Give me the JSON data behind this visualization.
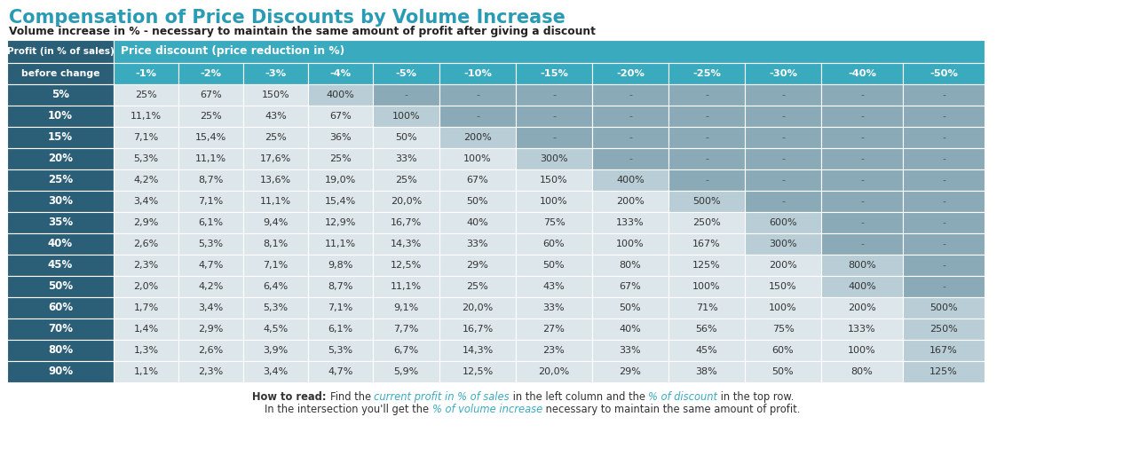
{
  "title": "Compensation of Price Discounts by Volume Increase",
  "subtitle": "Volume increase in % - necessary to maintain the same amount of profit after giving a discount",
  "col_headers": [
    "-1%",
    "-2%",
    "-3%",
    "-4%",
    "-5%",
    "-10%",
    "-15%",
    "-20%",
    "-25%",
    "-30%",
    "-40%",
    "-50%"
  ],
  "row_labels": [
    "5%",
    "10%",
    "15%",
    "20%",
    "25%",
    "30%",
    "35%",
    "40%",
    "45%",
    "50%",
    "60%",
    "70%",
    "80%",
    "90%"
  ],
  "table_data": [
    [
      "25%",
      "67%",
      "150%",
      "400%",
      "-",
      "-",
      "-",
      "-",
      "-",
      "-",
      "-",
      "-"
    ],
    [
      "11,1%",
      "25%",
      "43%",
      "67%",
      "100%",
      "-",
      "-",
      "-",
      "-",
      "-",
      "-",
      "-"
    ],
    [
      "7,1%",
      "15,4%",
      "25%",
      "36%",
      "50%",
      "200%",
      "-",
      "-",
      "-",
      "-",
      "-",
      "-"
    ],
    [
      "5,3%",
      "11,1%",
      "17,6%",
      "25%",
      "33%",
      "100%",
      "300%",
      "-",
      "-",
      "-",
      "-",
      "-"
    ],
    [
      "4,2%",
      "8,7%",
      "13,6%",
      "19,0%",
      "25%",
      "67%",
      "150%",
      "400%",
      "-",
      "-",
      "-",
      "-"
    ],
    [
      "3,4%",
      "7,1%",
      "11,1%",
      "15,4%",
      "20,0%",
      "50%",
      "100%",
      "200%",
      "500%",
      "-",
      "-",
      "-"
    ],
    [
      "2,9%",
      "6,1%",
      "9,4%",
      "12,9%",
      "16,7%",
      "40%",
      "75%",
      "133%",
      "250%",
      "600%",
      "-",
      "-"
    ],
    [
      "2,6%",
      "5,3%",
      "8,1%",
      "11,1%",
      "14,3%",
      "33%",
      "60%",
      "100%",
      "167%",
      "300%",
      "-",
      "-"
    ],
    [
      "2,3%",
      "4,7%",
      "7,1%",
      "9,8%",
      "12,5%",
      "29%",
      "50%",
      "80%",
      "125%",
      "200%",
      "800%",
      "-"
    ],
    [
      "2,0%",
      "4,2%",
      "6,4%",
      "8,7%",
      "11,1%",
      "25%",
      "43%",
      "67%",
      "100%",
      "150%",
      "400%",
      "-"
    ],
    [
      "1,7%",
      "3,4%",
      "5,3%",
      "7,1%",
      "9,1%",
      "20,0%",
      "33%",
      "50%",
      "71%",
      "100%",
      "200%",
      "500%"
    ],
    [
      "1,4%",
      "2,9%",
      "4,5%",
      "6,1%",
      "7,7%",
      "16,7%",
      "27%",
      "40%",
      "56%",
      "75%",
      "133%",
      "250%"
    ],
    [
      "1,3%",
      "2,6%",
      "3,9%",
      "5,3%",
      "6,7%",
      "14,3%",
      "23%",
      "33%",
      "45%",
      "60%",
      "100%",
      "167%"
    ],
    [
      "1,1%",
      "2,3%",
      "3,4%",
      "4,7%",
      "5,9%",
      "12,5%",
      "20,0%",
      "29%",
      "38%",
      "50%",
      "80%",
      "125%"
    ]
  ],
  "colors": {
    "title": "#2a9bb5",
    "subtitle_text": "#222222",
    "header_bg": "#3aaabf",
    "header_text": "#ffffff",
    "row_label_bg": "#2b5f78",
    "row_label_text": "#ffffff",
    "cell_white_bg": "#ffffff",
    "cell_light_bg": "#dde6ea",
    "cell_mid_bg": "#b8cdd5",
    "cell_dark_bg": "#8aaab8",
    "cell_text": "#333333",
    "note_normal": "#333333",
    "note_teal": "#3aaabf"
  },
  "last_value_col": [
    3,
    4,
    5,
    6,
    7,
    8,
    9,
    9,
    10,
    10,
    11,
    11,
    11,
    11
  ]
}
